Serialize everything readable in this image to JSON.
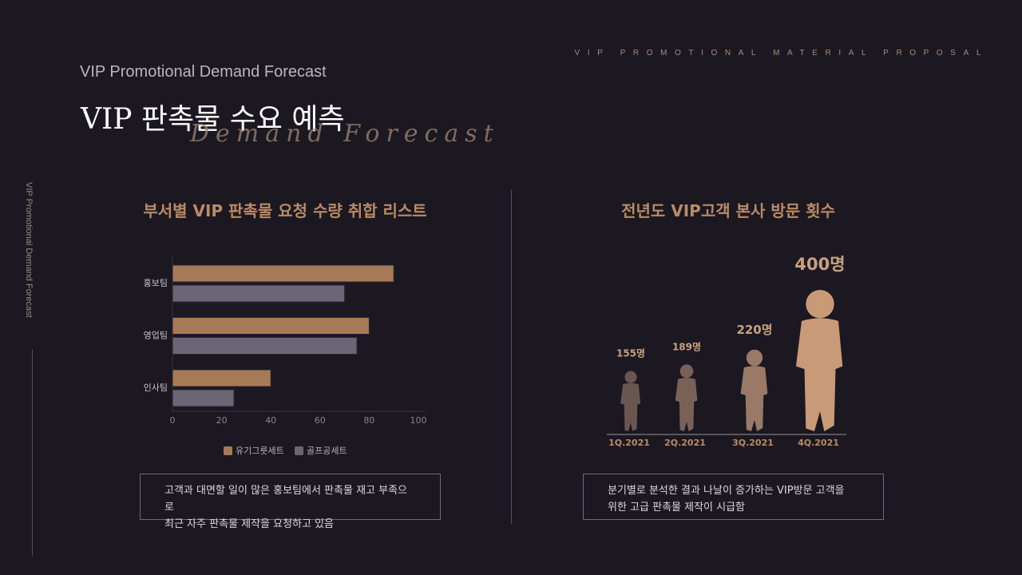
{
  "header": {
    "tag": "VIP PROMOTIONAL MATERIAL PROPOSAL",
    "subtitle": "VIP Promotional Demand Forecast",
    "title": "VIP 판촉물 수요 예측",
    "script_text": "Demand Forecast",
    "side_text": "VIP Promotional Demand Forecast"
  },
  "colors": {
    "background": "#1b1822",
    "accent": "#a77a57",
    "gray_bar": "#6b6675"
  },
  "left": {
    "title": "부서별 VIP 판촉물 요청 수량 취합 리스트",
    "note": [
      "고객과 대면할 일이 많은 홍보팀에서 판촉물 재고 부족으로",
      "최근 자주 판촉물 제작을 요청하고 있음"
    ]
  },
  "right": {
    "title": "전년도 VIP고객 본사 방문 횟수",
    "note": [
      "분기별로 분석한 결과 나날이 증가하는 VIP방문 고객을",
      "위한 고급 판촉물 제작이 시급함"
    ]
  },
  "chart_data": [
    {
      "type": "bar",
      "orientation": "horizontal",
      "categories": [
        "홍보팀",
        "영업팀",
        "인사팀"
      ],
      "series": [
        {
          "name": "유기그릇세트",
          "values": [
            90,
            80,
            40
          ],
          "color": "#a77a57"
        },
        {
          "name": "골프공세트",
          "values": [
            70,
            75,
            25
          ],
          "color": "#6b6675"
        }
      ],
      "xlim": [
        0,
        100
      ],
      "xticks": [
        0,
        20,
        40,
        60,
        80,
        100
      ],
      "legend": "bottom",
      "grid": false
    },
    {
      "type": "pictograph",
      "categories": [
        "1Q.2021",
        "2Q.2021",
        "3Q.2021",
        "4Q.2021"
      ],
      "values": [
        155,
        189,
        220,
        400
      ],
      "labels": [
        "155명",
        "189명",
        "220명",
        "400명"
      ],
      "icon": "person-silhouette-icon"
    }
  ]
}
